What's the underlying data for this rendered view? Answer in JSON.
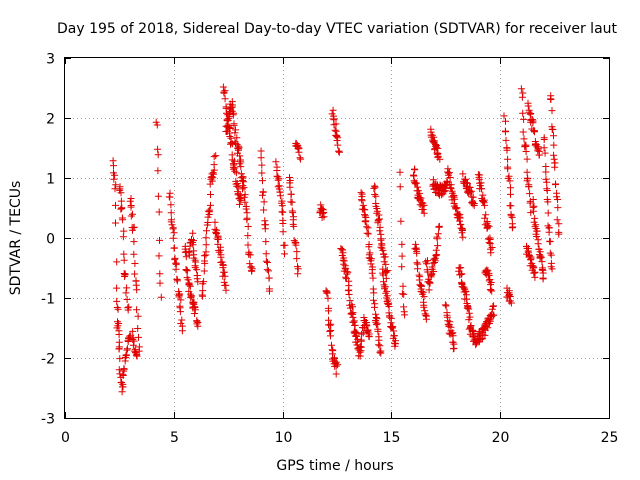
{
  "chart_data": {
    "type": "scatter",
    "title": "Day 195 of 2018, Sidereal Day-to-day VTEC variation (SDTVAR) for receiver laut",
    "xlabel": "GPS time / hours",
    "ylabel": "SDTVAR / TECUs",
    "xlim": [
      0,
      25
    ],
    "ylim": [
      -3,
      3
    ],
    "xticks": [
      "0",
      "5",
      "10",
      "15",
      "20",
      "25"
    ],
    "yticks": [
      "3",
      "2",
      "1",
      "0",
      "-1",
      "-2",
      "-3"
    ],
    "grid": true,
    "marker": "+",
    "color": "#e00000",
    "series": [
      {
        "name": "SDTVAR",
        "arcs": [
          {
            "x0": 2.2,
            "x1": 2.5,
            "y": [
              1.2,
              0.9,
              -1.1,
              -1.8
            ]
          },
          {
            "x0": 2.4,
            "x1": 3.0,
            "y": [
              -1.4,
              -2.5,
              -2.0,
              -1.6
            ]
          },
          {
            "x0": 2.5,
            "x1": 2.9,
            "y": [
              0.8,
              0.4,
              -0.6,
              -1.2
            ]
          },
          {
            "x0": 3.0,
            "x1": 3.4,
            "y": [
              0.6,
              0.2,
              -0.8,
              -1.9
            ]
          },
          {
            "x0": 3.1,
            "x1": 3.3,
            "y": [
              -1.6,
              -1.8,
              -2.0
            ]
          },
          {
            "x0": 4.2,
            "x1": 4.4,
            "y": [
              2.0,
              1.4,
              0.6,
              -0.4,
              -1.0
            ]
          },
          {
            "x0": 4.8,
            "x1": 5.4,
            "y": [
              0.7,
              0.1,
              -0.5,
              -1.0,
              -1.5
            ]
          },
          {
            "x0": 5.5,
            "x1": 6.1,
            "y": [
              -0.2,
              -0.8,
              -1.1,
              -1.4
            ]
          },
          {
            "x0": 5.7,
            "x1": 6.1,
            "y": [
              -0.3,
              0.0,
              -0.4,
              -0.7
            ]
          },
          {
            "x0": 6.3,
            "x1": 6.9,
            "y": [
              -1.0,
              -0.3,
              0.4,
              1.0,
              1.3
            ]
          },
          {
            "x0": 6.9,
            "x1": 7.4,
            "y": [
              0.2,
              -0.1,
              -0.5,
              -0.8
            ]
          },
          {
            "x0": 7.3,
            "x1": 8.1,
            "y": [
              2.5,
              2.0,
              1.6,
              1.2,
              0.8,
              0.6
            ]
          },
          {
            "x0": 7.4,
            "x1": 8.2,
            "y": [
              1.8,
              2.2,
              1.5,
              0.9
            ]
          },
          {
            "x0": 8.2,
            "x1": 8.6,
            "y": [
              1.0,
              0.4,
              -0.3,
              -0.6
            ]
          },
          {
            "x0": 9.0,
            "x1": 9.4,
            "y": [
              1.4,
              0.8,
              0.2,
              -0.5,
              -0.8
            ]
          },
          {
            "x0": 9.7,
            "x1": 10.1,
            "y": [
              1.2,
              0.9,
              0.5,
              -0.2
            ]
          },
          {
            "x0": 10.3,
            "x1": 10.7,
            "y": [
              1.0,
              0.5,
              0.0,
              -0.6
            ]
          },
          {
            "x0": 10.6,
            "x1": 10.8,
            "y": [
              1.6,
              1.4
            ]
          },
          {
            "x0": 11.7,
            "x1": 11.9,
            "y": [
              0.5,
              0.4
            ]
          },
          {
            "x0": 12.0,
            "x1": 12.5,
            "y": [
              -0.8,
              -1.5,
              -2.0,
              -2.2
            ]
          },
          {
            "x0": 12.3,
            "x1": 12.6,
            "y": [
              2.1,
              1.8,
              1.4
            ]
          },
          {
            "x0": 12.7,
            "x1": 13.4,
            "y": [
              -0.2,
              -0.6,
              -1.2,
              -1.7
            ]
          },
          {
            "x0": 13.3,
            "x1": 14.0,
            "y": [
              -1.5,
              -1.9,
              -1.4,
              -1.6
            ]
          },
          {
            "x0": 13.6,
            "x1": 14.5,
            "y": [
              0.7,
              0.3,
              -0.4,
              -1.3,
              -1.9
            ]
          },
          {
            "x0": 14.2,
            "x1": 14.8,
            "y": [
              0.9,
              0.3,
              -0.2,
              -0.6
            ]
          },
          {
            "x0": 14.6,
            "x1": 15.2,
            "y": [
              -0.6,
              -1.0,
              -1.4,
              -1.8
            ]
          },
          {
            "x0": 15.4,
            "x1": 15.6,
            "y": [
              1.1,
              -0.3,
              -1.0,
              -1.3
            ]
          },
          {
            "x0": 16.0,
            "x1": 16.5,
            "y": [
              1.1,
              0.7,
              0.5
            ]
          },
          {
            "x0": 16.1,
            "x1": 16.6,
            "y": [
              -0.1,
              -0.8,
              -1.3
            ]
          },
          {
            "x0": 16.6,
            "x1": 17.2,
            "y": [
              -0.4,
              -0.8,
              -0.5,
              -0.2,
              0.2
            ]
          },
          {
            "x0": 16.8,
            "x1": 17.2,
            "y": [
              1.8,
              1.5,
              1.4
            ]
          },
          {
            "x0": 16.9,
            "x1": 17.6,
            "y": [
              0.9,
              0.8,
              0.8,
              0.9
            ]
          },
          {
            "x0": 17.5,
            "x1": 17.9,
            "y": [
              -1.2,
              -1.5,
              -1.8
            ]
          },
          {
            "x0": 17.6,
            "x1": 18.3,
            "y": [
              1.1,
              0.7,
              0.4,
              0.1
            ]
          },
          {
            "x0": 18.1,
            "x1": 18.6,
            "y": [
              -0.5,
              -0.9,
              -1.3
            ]
          },
          {
            "x0": 18.3,
            "x1": 18.8,
            "y": [
              1.0,
              0.8,
              0.6
            ]
          },
          {
            "x0": 18.6,
            "x1": 19.2,
            "y": [
              -1.5,
              -1.7,
              -1.6
            ]
          },
          {
            "x0": 19.0,
            "x1": 19.6,
            "y": [
              1.0,
              0.7,
              0.2,
              -0.2
            ]
          },
          {
            "x0": 19.2,
            "x1": 19.7,
            "y": [
              -1.6,
              -1.4,
              -1.2
            ]
          },
          {
            "x0": 19.3,
            "x1": 19.6,
            "y": [
              -0.5,
              -0.8
            ]
          },
          {
            "x0": 20.2,
            "x1": 20.6,
            "y": [
              2.0,
              1.5,
              1.0,
              0.5,
              0.1
            ]
          },
          {
            "x0": 20.3,
            "x1": 20.5,
            "y": [
              -0.9,
              -1.0
            ]
          },
          {
            "x0": 21.0,
            "x1": 21.4,
            "y": [
              2.4,
              1.6,
              1.0,
              0.5
            ]
          },
          {
            "x0": 21.2,
            "x1": 21.6,
            "y": [
              -0.2,
              -0.4,
              -0.6
            ]
          },
          {
            "x0": 21.3,
            "x1": 21.8,
            "y": [
              2.2,
              1.9,
              1.6,
              1.4
            ]
          },
          {
            "x0": 21.5,
            "x1": 22.0,
            "y": [
              0.6,
              0.1,
              -0.3,
              -0.6
            ]
          },
          {
            "x0": 22.0,
            "x1": 22.4,
            "y": [
              1.6,
              0.9,
              0.1,
              -0.5
            ]
          },
          {
            "x0": 22.3,
            "x1": 22.7,
            "y": [
              2.4,
              1.8,
              1.2,
              0.6,
              0.0
            ]
          }
        ]
      }
    ]
  }
}
